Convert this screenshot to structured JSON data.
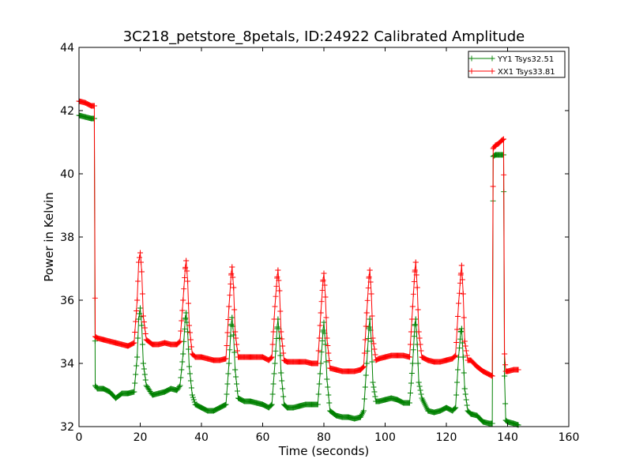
{
  "chart_data": {
    "type": "line",
    "title": "3C218_petstore_8petals, ID:24922 Calibrated Amplitude",
    "xlabel": "Time (seconds)",
    "ylabel": "Power in Kelvin",
    "xlim": [
      0,
      160
    ],
    "ylim": [
      32,
      44
    ],
    "xticks": [
      0,
      20,
      40,
      60,
      80,
      100,
      120,
      140,
      160
    ],
    "yticks": [
      32,
      34,
      36,
      38,
      40,
      42,
      44
    ],
    "grid": false,
    "legend_position": "top-right",
    "marker": "+",
    "series": [
      {
        "name": "YY1 Tsys32.51",
        "color": "#008000",
        "points": [
          [
            0,
            41.85
          ],
          [
            2,
            41.8
          ],
          [
            4,
            41.75
          ],
          [
            5,
            41.75
          ],
          [
            5.3,
            33.3
          ],
          [
            6,
            33.2
          ],
          [
            8,
            33.2
          ],
          [
            10,
            33.1
          ],
          [
            12,
            32.9
          ],
          [
            14,
            33.05
          ],
          [
            16,
            33.05
          ],
          [
            18,
            33.1
          ],
          [
            19,
            34.2
          ],
          [
            19.5,
            35.4
          ],
          [
            20,
            35.75
          ],
          [
            20.5,
            35.2
          ],
          [
            21,
            34.0
          ],
          [
            22,
            33.3
          ],
          [
            24,
            33.0
          ],
          [
            26,
            33.05
          ],
          [
            28,
            33.1
          ],
          [
            30,
            33.2
          ],
          [
            32,
            33.15
          ],
          [
            33,
            33.3
          ],
          [
            34,
            34.3
          ],
          [
            34.7,
            35.4
          ],
          [
            35,
            35.6
          ],
          [
            35.5,
            35.0
          ],
          [
            36,
            33.9
          ],
          [
            37,
            33.0
          ],
          [
            38,
            32.7
          ],
          [
            40,
            32.6
          ],
          [
            42,
            32.5
          ],
          [
            44,
            32.5
          ],
          [
            46,
            32.6
          ],
          [
            48,
            32.7
          ],
          [
            49,
            34.0
          ],
          [
            49.7,
            35.2
          ],
          [
            50,
            35.45
          ],
          [
            50.5,
            34.9
          ],
          [
            51,
            33.8
          ],
          [
            52,
            32.9
          ],
          [
            54,
            32.8
          ],
          [
            56,
            32.8
          ],
          [
            58,
            32.75
          ],
          [
            60,
            32.7
          ],
          [
            62,
            32.6
          ],
          [
            63,
            32.7
          ],
          [
            64,
            34.0
          ],
          [
            64.7,
            35.1
          ],
          [
            65,
            35.4
          ],
          [
            65.5,
            34.8
          ],
          [
            66,
            33.7
          ],
          [
            67,
            32.7
          ],
          [
            68,
            32.6
          ],
          [
            70,
            32.6
          ],
          [
            72,
            32.65
          ],
          [
            74,
            32.7
          ],
          [
            76,
            32.7
          ],
          [
            78,
            32.7
          ],
          [
            79,
            34.0
          ],
          [
            79.7,
            35.0
          ],
          [
            80,
            35.3
          ],
          [
            80.5,
            34.6
          ],
          [
            81,
            33.5
          ],
          [
            82,
            32.5
          ],
          [
            84,
            32.35
          ],
          [
            86,
            32.3
          ],
          [
            88,
            32.3
          ],
          [
            90,
            32.25
          ],
          [
            92,
            32.3
          ],
          [
            93,
            32.5
          ],
          [
            94,
            34.0
          ],
          [
            94.7,
            35.1
          ],
          [
            95,
            35.4
          ],
          [
            95.5,
            34.7
          ],
          [
            96,
            33.4
          ],
          [
            97,
            32.8
          ],
          [
            98,
            32.8
          ],
          [
            100,
            32.85
          ],
          [
            102,
            32.9
          ],
          [
            104,
            32.85
          ],
          [
            106,
            32.75
          ],
          [
            108,
            32.75
          ],
          [
            109,
            34.0
          ],
          [
            109.7,
            35.2
          ],
          [
            110,
            35.4
          ],
          [
            110.5,
            34.6
          ],
          [
            111,
            33.4
          ],
          [
            112,
            32.9
          ],
          [
            114,
            32.5
          ],
          [
            116,
            32.45
          ],
          [
            118,
            32.5
          ],
          [
            120,
            32.6
          ],
          [
            122,
            32.5
          ],
          [
            123,
            32.6
          ],
          [
            124,
            34.2
          ],
          [
            124.7,
            35.0
          ],
          [
            125,
            35.1
          ],
          [
            125.5,
            34.2
          ],
          [
            126,
            33.2
          ],
          [
            127,
            32.5
          ],
          [
            128,
            32.4
          ],
          [
            130,
            32.35
          ],
          [
            132,
            32.15
          ],
          [
            134,
            32.1
          ],
          [
            135,
            32.1
          ],
          [
            135.3,
            40.55
          ],
          [
            136,
            40.6
          ],
          [
            137,
            40.6
          ],
          [
            138,
            40.6
          ],
          [
            138.7,
            40.6
          ],
          [
            139,
            33.6
          ],
          [
            139.4,
            32.2
          ],
          [
            140,
            32.15
          ],
          [
            142,
            32.1
          ],
          [
            143.5,
            32.05
          ]
        ]
      },
      {
        "name": "XX1 Tsys33.81",
        "color": "#ff0000",
        "points": [
          [
            0,
            42.3
          ],
          [
            2,
            42.25
          ],
          [
            4,
            42.15
          ],
          [
            5,
            42.15
          ],
          [
            5.3,
            34.85
          ],
          [
            6,
            34.8
          ],
          [
            8,
            34.75
          ],
          [
            10,
            34.7
          ],
          [
            12,
            34.65
          ],
          [
            14,
            34.6
          ],
          [
            16,
            34.55
          ],
          [
            18,
            34.65
          ],
          [
            19,
            36.0
          ],
          [
            19.5,
            37.2
          ],
          [
            20,
            37.5
          ],
          [
            20.5,
            36.9
          ],
          [
            21,
            35.5
          ],
          [
            22,
            34.75
          ],
          [
            24,
            34.6
          ],
          [
            26,
            34.6
          ],
          [
            28,
            34.65
          ],
          [
            30,
            34.6
          ],
          [
            32,
            34.6
          ],
          [
            33,
            34.7
          ],
          [
            34,
            36.0
          ],
          [
            34.7,
            37.0
          ],
          [
            35,
            37.25
          ],
          [
            35.5,
            36.6
          ],
          [
            36,
            35.2
          ],
          [
            37,
            34.3
          ],
          [
            38,
            34.2
          ],
          [
            40,
            34.2
          ],
          [
            42,
            34.15
          ],
          [
            44,
            34.1
          ],
          [
            46,
            34.1
          ],
          [
            48,
            34.15
          ],
          [
            49,
            35.8
          ],
          [
            49.7,
            36.8
          ],
          [
            50,
            37.05
          ],
          [
            50.5,
            36.4
          ],
          [
            51,
            35.0
          ],
          [
            52,
            34.2
          ],
          [
            54,
            34.2
          ],
          [
            56,
            34.2
          ],
          [
            58,
            34.2
          ],
          [
            60,
            34.2
          ],
          [
            62,
            34.1
          ],
          [
            63,
            34.2
          ],
          [
            64,
            35.8
          ],
          [
            64.7,
            36.7
          ],
          [
            65,
            36.95
          ],
          [
            65.5,
            36.3
          ],
          [
            66,
            35.0
          ],
          [
            67,
            34.1
          ],
          [
            68,
            34.05
          ],
          [
            70,
            34.05
          ],
          [
            72,
            34.05
          ],
          [
            74,
            34.05
          ],
          [
            76,
            34.0
          ],
          [
            78,
            34.0
          ],
          [
            79,
            35.6
          ],
          [
            79.7,
            36.6
          ],
          [
            80,
            36.85
          ],
          [
            80.5,
            36.1
          ],
          [
            81,
            34.8
          ],
          [
            82,
            33.85
          ],
          [
            84,
            33.8
          ],
          [
            86,
            33.75
          ],
          [
            88,
            33.75
          ],
          [
            90,
            33.75
          ],
          [
            92,
            33.8
          ],
          [
            93,
            33.9
          ],
          [
            94,
            35.6
          ],
          [
            94.7,
            36.7
          ],
          [
            95,
            36.95
          ],
          [
            95.5,
            36.2
          ],
          [
            96,
            34.8
          ],
          [
            97,
            34.1
          ],
          [
            98,
            34.15
          ],
          [
            100,
            34.2
          ],
          [
            102,
            34.25
          ],
          [
            104,
            34.25
          ],
          [
            106,
            34.25
          ],
          [
            108,
            34.2
          ],
          [
            109,
            35.8
          ],
          [
            109.7,
            36.9
          ],
          [
            110,
            37.2
          ],
          [
            110.5,
            36.4
          ],
          [
            111,
            35.0
          ],
          [
            112,
            34.2
          ],
          [
            114,
            34.1
          ],
          [
            116,
            34.05
          ],
          [
            118,
            34.05
          ],
          [
            120,
            34.1
          ],
          [
            122,
            34.15
          ],
          [
            123,
            34.25
          ],
          [
            124,
            35.9
          ],
          [
            124.7,
            36.8
          ],
          [
            125,
            37.1
          ],
          [
            125.5,
            36.2
          ],
          [
            126,
            34.7
          ],
          [
            127,
            34.1
          ],
          [
            128,
            34.1
          ],
          [
            130,
            33.9
          ],
          [
            132,
            33.75
          ],
          [
            134,
            33.65
          ],
          [
            135,
            33.6
          ],
          [
            135.3,
            40.8
          ],
          [
            136,
            40.9
          ],
          [
            137,
            40.95
          ],
          [
            138,
            41.05
          ],
          [
            138.7,
            41.1
          ],
          [
            139,
            34.3
          ],
          [
            139.4,
            33.75
          ],
          [
            140,
            33.75
          ],
          [
            142,
            33.8
          ],
          [
            143.5,
            33.8
          ]
        ]
      }
    ]
  }
}
